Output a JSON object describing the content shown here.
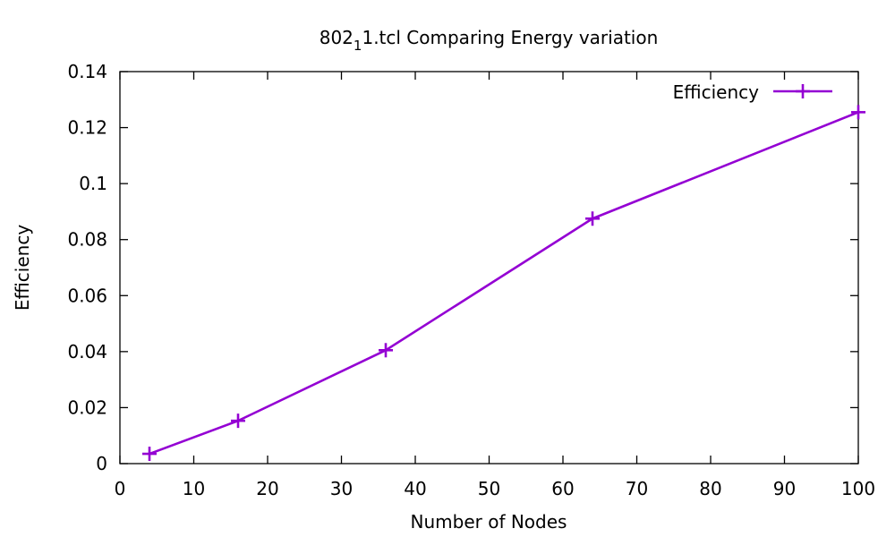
{
  "chart_data": {
    "type": "line",
    "title": {
      "prefix": "802",
      "subscript": "1",
      "suffix": "1.tcl Comparing Energy variation"
    },
    "xlabel": "Number of Nodes",
    "ylabel": "Efficiency",
    "xlim": [
      0,
      100
    ],
    "ylim": [
      0,
      0.14
    ],
    "xticks": [
      0,
      10,
      20,
      30,
      40,
      50,
      60,
      70,
      80,
      90,
      100
    ],
    "yticks": [
      0,
      0.02,
      0.04,
      0.06,
      0.08,
      0.1,
      0.12,
      0.14
    ],
    "ytick_labels": [
      "0",
      "0.02",
      "0.04",
      "0.06",
      "0.08",
      "0.1",
      "0.12",
      "0.14"
    ],
    "grid": false,
    "legend_position": "top-right",
    "series": [
      {
        "name": "Efficiency",
        "color": "#9400d3",
        "marker": "plus",
        "x": [
          4,
          16,
          36,
          64,
          100
        ],
        "y": [
          0.0035,
          0.0153,
          0.0405,
          0.0875,
          0.1255
        ]
      }
    ]
  }
}
